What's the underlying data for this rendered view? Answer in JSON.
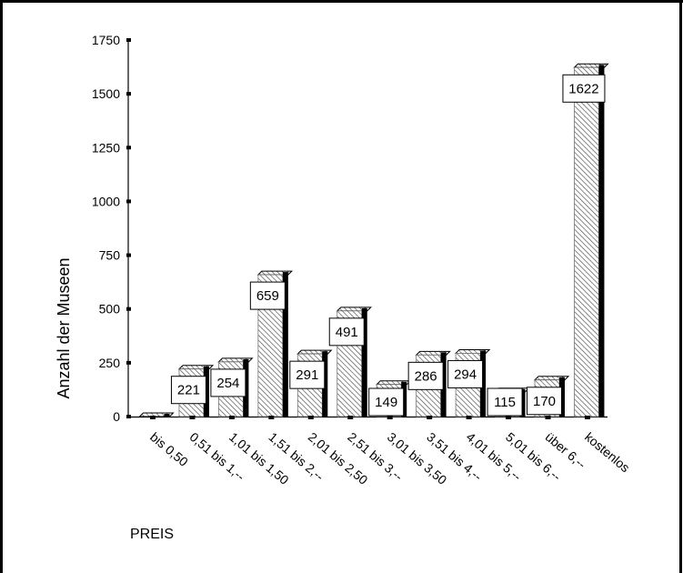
{
  "chart_data": {
    "type": "bar",
    "style": "3d-hatched",
    "xlabel": "PREIS",
    "ylabel": "Anzahl der Museen",
    "ylim": [
      0,
      1750
    ],
    "yticks": [
      "0",
      "250",
      "500",
      "750",
      "1000",
      "1250",
      "1500",
      "1750"
    ],
    "categories": [
      "bis 0,50",
      "0,51 bis 1,--",
      "1,01 bis 1,50",
      "1,51 bis 2,--",
      "2,01 bis 2,50",
      "2,51 bis 3,--",
      "3,01 bis 3,50",
      "3,51 bis 4,--",
      "4,01 bis 5,--",
      "5,01 bis 6,--",
      "über 6,--",
      "kostenlos"
    ],
    "values": [
      0,
      221,
      254,
      659,
      291,
      491,
      149,
      286,
      294,
      115,
      170,
      1622
    ],
    "data_labels": [
      "",
      "221",
      "254",
      "659",
      "291",
      "491",
      "149",
      "286",
      "294",
      "115",
      "170",
      "1622"
    ],
    "grid": false,
    "legend": "none",
    "colors": {
      "frame": "#000000",
      "bar_fill": "#ffffff",
      "hatch": "#555555",
      "bar_shadow": "#000000",
      "label_box": "#ffffff"
    }
  }
}
